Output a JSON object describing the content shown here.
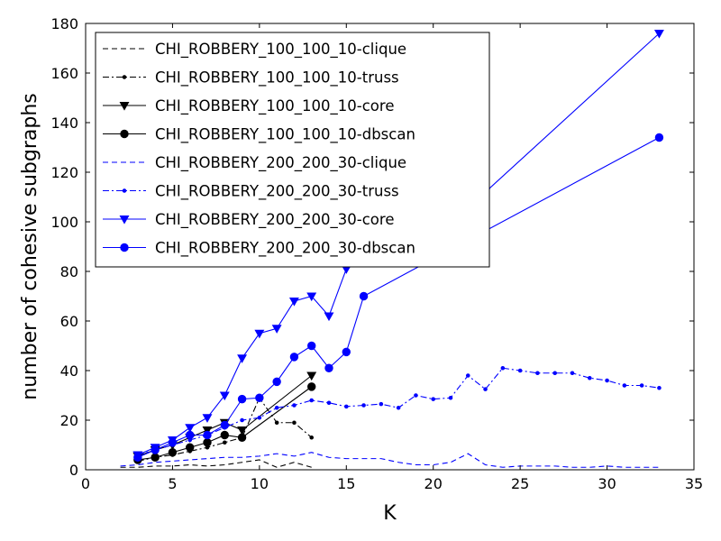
{
  "chart_data": {
    "type": "line",
    "xlabel": "K",
    "ylabel": "number of cohesive subgraphs",
    "xlim": [
      0,
      35
    ],
    "ylim": [
      0,
      180
    ],
    "xticks": [
      0,
      5,
      10,
      15,
      20,
      25,
      30,
      35
    ],
    "yticks": [
      0,
      20,
      40,
      60,
      80,
      100,
      120,
      140,
      160,
      180
    ],
    "grid": false,
    "legend_position": "top-left",
    "series": [
      {
        "name": "CHI_ROBBERY_100_100_10-clique",
        "color": "#000000",
        "linestyle": "dashed",
        "marker": "none",
        "x": [
          2,
          3,
          4,
          5,
          6,
          7,
          8,
          9,
          10,
          11,
          12,
          13
        ],
        "y": [
          1,
          1,
          1.5,
          1.5,
          2,
          1.5,
          2,
          3,
          4,
          1,
          3,
          1
        ]
      },
      {
        "name": "CHI_ROBBERY_100_100_10-truss",
        "color": "#000000",
        "linestyle": "dashdot",
        "marker": "small-dot",
        "x": [
          3,
          4,
          5,
          6,
          7,
          8,
          9,
          10,
          11,
          12,
          13
        ],
        "y": [
          3.5,
          5,
          6,
          7.5,
          9,
          11,
          13,
          29,
          19,
          19,
          13
        ]
      },
      {
        "name": "CHI_ROBBERY_100_100_10-core",
        "color": "#000000",
        "linestyle": "solid",
        "marker": "triangle-down",
        "x": [
          3,
          4,
          5,
          6,
          7,
          8,
          9,
          13
        ],
        "y": [
          5.5,
          8,
          10,
          13,
          16,
          19,
          16,
          38
        ]
      },
      {
        "name": "CHI_ROBBERY_100_100_10-dbscan",
        "color": "#000000",
        "linestyle": "solid",
        "marker": "circle",
        "x": [
          3,
          4,
          5,
          6,
          7,
          8,
          9,
          13
        ],
        "y": [
          4,
          5,
          7,
          9,
          11,
          14,
          13,
          33.5
        ]
      },
      {
        "name": "CHI_ROBBERY_200_200_30-clique",
        "color": "#0000ff",
        "linestyle": "dashed",
        "marker": "none",
        "x": [
          2,
          3,
          4,
          5,
          6,
          7,
          8,
          9,
          10,
          11,
          12,
          13,
          14,
          15,
          16,
          17,
          18,
          19,
          20,
          21,
          22,
          23,
          24,
          25,
          26,
          27,
          28,
          29,
          30,
          31,
          32,
          33
        ],
        "y": [
          1.5,
          2,
          3,
          3.5,
          4,
          4.5,
          5,
          5,
          5.5,
          6.5,
          5.5,
          7,
          5,
          4.5,
          4.5,
          4.5,
          3,
          2,
          2,
          3,
          6.5,
          2,
          1,
          1.5,
          1.5,
          1.5,
          1,
          1,
          1.5,
          1,
          1,
          1
        ]
      },
      {
        "name": "CHI_ROBBERY_200_200_30-truss",
        "color": "#0000ff",
        "linestyle": "dashdot",
        "marker": "small-dot",
        "x": [
          3,
          4,
          5,
          6,
          7,
          8,
          9,
          10,
          11,
          12,
          13,
          14,
          15,
          16,
          17,
          18,
          19,
          20,
          21,
          22,
          23,
          24,
          25,
          26,
          27,
          28,
          29,
          30,
          31,
          32,
          33
        ],
        "y": [
          6,
          8,
          10,
          12,
          14,
          17,
          20,
          21,
          25,
          26,
          28,
          27,
          25.5,
          26,
          26.5,
          25,
          30,
          28.5,
          29,
          38,
          32.5,
          41,
          40,
          39,
          39,
          39,
          37,
          36,
          34,
          34,
          33
        ]
      },
      {
        "name": "CHI_ROBBERY_200_200_30-core",
        "color": "#0000ff",
        "linestyle": "solid",
        "marker": "triangle-down",
        "x": [
          3,
          4,
          5,
          6,
          7,
          8,
          9,
          10,
          11,
          12,
          13,
          14,
          15,
          16,
          23,
          33
        ],
        "y": [
          6,
          9,
          12,
          17,
          21,
          30,
          45,
          55,
          57,
          68,
          70,
          62,
          81,
          85,
          112,
          176
        ]
      },
      {
        "name": "CHI_ROBBERY_200_200_30-dbscan",
        "color": "#0000ff",
        "linestyle": "solid",
        "marker": "circle",
        "x": [
          3,
          4,
          5,
          6,
          7,
          8,
          9,
          10,
          11,
          12,
          13,
          14,
          15,
          16,
          33
        ],
        "y": [
          5,
          8,
          11,
          14,
          14,
          18,
          28.5,
          29,
          35.5,
          45.5,
          50,
          41,
          47.5,
          70,
          134
        ]
      }
    ]
  }
}
